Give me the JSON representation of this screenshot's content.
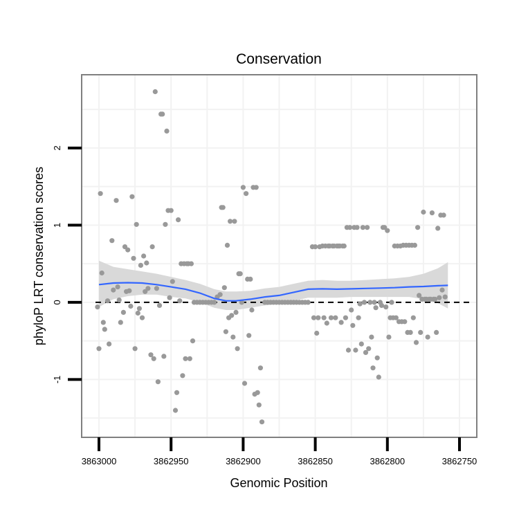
{
  "chart_data": {
    "type": "scatter",
    "title": "Conservation",
    "xlabel": "Genomic Position",
    "ylabel": "phyloP LRT conservation scores",
    "x_reversed": true,
    "xlim": [
      3863012,
      3862738
    ],
    "ylim": [
      -1.75,
      2.95
    ],
    "x_ticks": [
      3863000,
      3862950,
      3862900,
      3862850,
      3862800,
      3862750
    ],
    "x_tick_labels": [
      "3863000",
      "3862950",
      "3862900",
      "3862850",
      "3862800",
      "3862750"
    ],
    "y_ticks": [
      -1,
      0,
      1,
      2
    ],
    "y_tick_labels": [
      "-1",
      "0",
      "1",
      "2"
    ],
    "reference_line": {
      "y": 0,
      "style": "dashed"
    },
    "grid": true,
    "colors": {
      "points": "#999999",
      "smooth": "#3366ff",
      "ribbon": "#d9d9d9",
      "panel_border": "#7f7f7f",
      "grid": "#f2f2f2"
    },
    "points": [
      [
        3863001,
        -0.06
      ],
      [
        3863000,
        -0.6
      ],
      [
        3862999,
        1.41
      ],
      [
        3862998,
        0.38
      ],
      [
        3862997,
        -0.26
      ],
      [
        3862996,
        -0.35
      ],
      [
        3862994,
        0.02
      ],
      [
        3862993,
        -0.54
      ],
      [
        3862991,
        0.8
      ],
      [
        3862990,
        0.16
      ],
      [
        3862988,
        1.32
      ],
      [
        3862987,
        0.2
      ],
      [
        3862986,
        0.03
      ],
      [
        3862985,
        -0.26
      ],
      [
        3862983,
        -0.13
      ],
      [
        3862982,
        0.72
      ],
      [
        3862981,
        0.14
      ],
      [
        3862980,
        0.68
      ],
      [
        3862979,
        0.15
      ],
      [
        3862978,
        -0.05
      ],
      [
        3862977,
        1.37
      ],
      [
        3862976,
        0.57
      ],
      [
        3862975,
        -0.6
      ],
      [
        3862974,
        1.01
      ],
      [
        3862973,
        -0.14
      ],
      [
        3862972,
        -0.08
      ],
      [
        3862971,
        0.48
      ],
      [
        3862970,
        -0.2
      ],
      [
        3862969,
        0.6
      ],
      [
        3862968,
        0.14
      ],
      [
        3862967,
        0.51
      ],
      [
        3862966,
        0.18
      ],
      [
        3862964,
        -0.68
      ],
      [
        3862963,
        0.72
      ],
      [
        3862962,
        -0.73
      ],
      [
        3862961,
        2.73
      ],
      [
        3862960,
        0.18
      ],
      [
        3862959,
        -1.03
      ],
      [
        3862958,
        -0.04
      ],
      [
        3862957,
        2.44
      ],
      [
        3862956,
        2.44
      ],
      [
        3862955,
        -0.7
      ],
      [
        3862954,
        1.01
      ],
      [
        3862953,
        2.22
      ],
      [
        3862952,
        1.19
      ],
      [
        3862951,
        0.06
      ],
      [
        3862950,
        1.19
      ],
      [
        3862949,
        0.27
      ],
      [
        3862947,
        -1.4
      ],
      [
        3862946,
        -1.17
      ],
      [
        3862945,
        1.07
      ],
      [
        3862944,
        0.02
      ],
      [
        3862943,
        0.5
      ],
      [
        3862942,
        -0.95
      ],
      [
        3862941,
        0.5
      ],
      [
        3862940,
        -0.73
      ],
      [
        3862939,
        0.5
      ],
      [
        3862938,
        0.5
      ],
      [
        3862937,
        -0.73
      ],
      [
        3862936,
        0.5
      ],
      [
        3862935,
        -0.5
      ],
      [
        3862934,
        0.0
      ],
      [
        3862932,
        0.0
      ],
      [
        3862930,
        0.0
      ],
      [
        3862928,
        0.0
      ],
      [
        3862926,
        0.0
      ],
      [
        3862924,
        0.0
      ],
      [
        3862922,
        0.0
      ],
      [
        3862920,
        0.0
      ],
      [
        3862918,
        0.07
      ],
      [
        3862916,
        0.1
      ],
      [
        3862915,
        1.23
      ],
      [
        3862914,
        1.23
      ],
      [
        3862913,
        0.19
      ],
      [
        3862912,
        -0.38
      ],
      [
        3862911,
        0.74
      ],
      [
        3862910,
        -0.2
      ],
      [
        3862909,
        1.05
      ],
      [
        3862908,
        -0.17
      ],
      [
        3862907,
        -0.45
      ],
      [
        3862906,
        1.05
      ],
      [
        3862905,
        -0.13
      ],
      [
        3862904,
        -0.6
      ],
      [
        3862903,
        0.37
      ],
      [
        3862902,
        0.37
      ],
      [
        3862901,
        0.0
      ],
      [
        3862900,
        1.49
      ],
      [
        3862899,
        -1.05
      ],
      [
        3862898,
        1.41
      ],
      [
        3862897,
        0.3
      ],
      [
        3862896,
        -0.43
      ],
      [
        3862895,
        0.3
      ],
      [
        3862894,
        -0.1
      ],
      [
        3862893,
        1.49
      ],
      [
        3862892,
        -1.19
      ],
      [
        3862891,
        1.49
      ],
      [
        3862890,
        -1.17
      ],
      [
        3862889,
        -1.33
      ],
      [
        3862888,
        -0.85
      ],
      [
        3862887,
        -1.55
      ],
      [
        3862885,
        0.0
      ],
      [
        3862883,
        0.0
      ],
      [
        3862881,
        0.0
      ],
      [
        3862879,
        0.0
      ],
      [
        3862877,
        0.0
      ],
      [
        3862875,
        0.0
      ],
      [
        3862873,
        0.0
      ],
      [
        3862871,
        0.0
      ],
      [
        3862869,
        0.0
      ],
      [
        3862867,
        0.0
      ],
      [
        3862865,
        0.0
      ],
      [
        3862863,
        0.0
      ],
      [
        3862861,
        0.0
      ],
      [
        3862859,
        0.0
      ],
      [
        3862857,
        0.0
      ],
      [
        3862855,
        0.0
      ],
      [
        3862852,
        0.72
      ],
      [
        3862851,
        -0.2
      ],
      [
        3862850,
        0.72
      ],
      [
        3862849,
        -0.4
      ],
      [
        3862848,
        -0.2
      ],
      [
        3862847,
        0.72
      ],
      [
        3862845,
        0.73
      ],
      [
        3862844,
        -0.2
      ],
      [
        3862843,
        0.73
      ],
      [
        3862842,
        -0.27
      ],
      [
        3862841,
        0.73
      ],
      [
        3862840,
        0.73
      ],
      [
        3862839,
        -0.2
      ],
      [
        3862838,
        0.73
      ],
      [
        3862837,
        0.73
      ],
      [
        3862836,
        -0.2
      ],
      [
        3862835,
        0.73
      ],
      [
        3862834,
        0.73
      ],
      [
        3862833,
        0.73
      ],
      [
        3862832,
        -0.26
      ],
      [
        3862831,
        0.73
      ],
      [
        3862830,
        0.73
      ],
      [
        3862829,
        -0.2
      ],
      [
        3862828,
        0.97
      ],
      [
        3862827,
        -0.62
      ],
      [
        3862826,
        0.97
      ],
      [
        3862825,
        -0.1
      ],
      [
        3862824,
        -0.3
      ],
      [
        3862823,
        0.97
      ],
      [
        3862822,
        -0.62
      ],
      [
        3862821,
        0.97
      ],
      [
        3862820,
        -0.2
      ],
      [
        3862819,
        -0.02
      ],
      [
        3862818,
        -0.54
      ],
      [
        3862817,
        0.97
      ],
      [
        3862816,
        0.0
      ],
      [
        3862815,
        -0.65
      ],
      [
        3862814,
        0.97
      ],
      [
        3862813,
        -0.6
      ],
      [
        3862812,
        0.0
      ],
      [
        3862811,
        -0.45
      ],
      [
        3862810,
        -0.85
      ],
      [
        3862809,
        0.0
      ],
      [
        3862808,
        -0.07
      ],
      [
        3862807,
        -0.72
      ],
      [
        3862806,
        -0.97
      ],
      [
        3862805,
        0.0
      ],
      [
        3862804,
        -0.04
      ],
      [
        3862803,
        0.97
      ],
      [
        3862802,
        0.97
      ],
      [
        3862801,
        -0.06
      ],
      [
        3862800,
        0.93
      ],
      [
        3862799,
        -0.45
      ],
      [
        3862798,
        -0.2
      ],
      [
        3862797,
        0.0
      ],
      [
        3862796,
        -0.2
      ],
      [
        3862795,
        0.73
      ],
      [
        3862794,
        -0.2
      ],
      [
        3862793,
        0.73
      ],
      [
        3862792,
        -0.25
      ],
      [
        3862791,
        0.73
      ],
      [
        3862790,
        -0.25
      ],
      [
        3862789,
        0.74
      ],
      [
        3862788,
        -0.25
      ],
      [
        3862787,
        0.74
      ],
      [
        3862786,
        -0.39
      ],
      [
        3862785,
        0.74
      ],
      [
        3862784,
        -0.39
      ],
      [
        3862783,
        0.74
      ],
      [
        3862782,
        -0.2
      ],
      [
        3862781,
        0.74
      ],
      [
        3862780,
        -0.52
      ],
      [
        3862779,
        0.97
      ],
      [
        3862778,
        0.09
      ],
      [
        3862777,
        -0.39
      ],
      [
        3862776,
        0.04
      ],
      [
        3862775,
        1.17
      ],
      [
        3862774,
        0.04
      ],
      [
        3862773,
        0.04
      ],
      [
        3862772,
        -0.45
      ],
      [
        3862771,
        0.04
      ],
      [
        3862770,
        0.04
      ],
      [
        3862769,
        1.16
      ],
      [
        3862768,
        0.04
      ],
      [
        3862767,
        0.04
      ],
      [
        3862766,
        -0.39
      ],
      [
        3862765,
        0.96
      ],
      [
        3862764,
        0.06
      ],
      [
        3862763,
        1.13
      ],
      [
        3862762,
        0.16
      ],
      [
        3862761,
        1.13
      ],
      [
        3862760,
        0.07
      ]
    ],
    "smooth": [
      [
        3863000,
        0.23,
        0.54,
        -0.06
      ],
      [
        3862990,
        0.25,
        0.46,
        0.04
      ],
      [
        3862980,
        0.255,
        0.43,
        0.08
      ],
      [
        3862970,
        0.25,
        0.4,
        0.1
      ],
      [
        3862960,
        0.23,
        0.37,
        0.1
      ],
      [
        3862950,
        0.2,
        0.33,
        0.07
      ],
      [
        3862940,
        0.17,
        0.29,
        0.05
      ],
      [
        3862930,
        0.12,
        0.24,
        0.0
      ],
      [
        3862920,
        0.05,
        0.17,
        -0.07
      ],
      [
        3862912,
        0.02,
        0.14,
        -0.1
      ],
      [
        3862905,
        0.02,
        0.14,
        -0.1
      ],
      [
        3862895,
        0.04,
        0.15,
        -0.07
      ],
      [
        3862885,
        0.07,
        0.18,
        -0.04
      ],
      [
        3862875,
        0.09,
        0.2,
        -0.02
      ],
      [
        3862865,
        0.13,
        0.24,
        0.02
      ],
      [
        3862855,
        0.17,
        0.28,
        0.06
      ],
      [
        3862845,
        0.175,
        0.29,
        0.06
      ],
      [
        3862835,
        0.17,
        0.28,
        0.06
      ],
      [
        3862825,
        0.175,
        0.28,
        0.07
      ],
      [
        3862815,
        0.18,
        0.29,
        0.07
      ],
      [
        3862805,
        0.185,
        0.3,
        0.07
      ],
      [
        3862795,
        0.19,
        0.31,
        0.07
      ],
      [
        3862785,
        0.2,
        0.33,
        0.07
      ],
      [
        3862775,
        0.205,
        0.37,
        0.04
      ],
      [
        3862765,
        0.215,
        0.44,
        -0.01
      ],
      [
        3862758,
        0.22,
        0.52,
        -0.08
      ]
    ]
  }
}
